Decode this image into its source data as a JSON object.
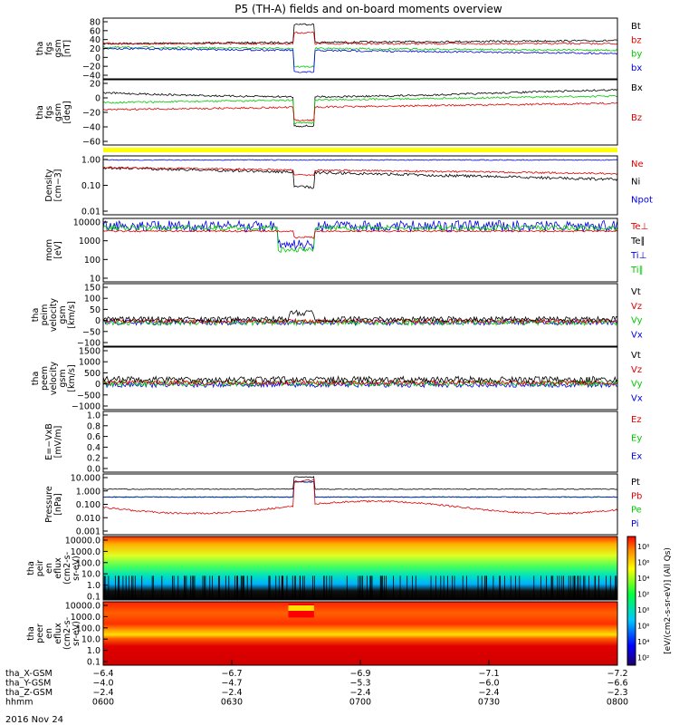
{
  "title": "P5 (TH-A) fields and on-board moments overview",
  "date_label": "2016 Nov 24",
  "colors": {
    "black": "#000000",
    "red": "#e00000",
    "green": "#00c800",
    "blue": "#0000e6",
    "yellow": "#ffff00"
  },
  "chart_data": [
    {
      "type": "line",
      "ylabel_lines": [
        "tha",
        "fgs",
        "gsm",
        "[nT]"
      ],
      "yticks": [
        "80",
        "60",
        "40",
        "20",
        "0",
        "−20",
        "−40"
      ],
      "legend": [
        {
          "name": "Bt",
          "color": "black"
        },
        {
          "name": "bz",
          "color": "red"
        },
        {
          "name": "by",
          "color": "green"
        },
        {
          "name": "bx",
          "color": "blue"
        }
      ]
    },
    {
      "type": "line",
      "ylabel_lines": [
        "tha",
        "fgs",
        "gsm",
        "[deg]"
      ],
      "yticks": [
        "20",
        "0",
        "−20",
        "−40",
        "−60"
      ],
      "legend": [
        {
          "name": "Bx",
          "color": "black"
        },
        {
          "name": "Bz",
          "color": "red"
        }
      ]
    },
    {
      "type": "line",
      "ylabel_lines": [
        "Density",
        "[cm−3]"
      ],
      "yticks": [
        "1.00",
        "0.10",
        "0.01"
      ],
      "legend": [
        {
          "name": "Ne",
          "color": "red"
        },
        {
          "name": "Ni",
          "color": "black"
        },
        {
          "name": "Npot",
          "color": "blue"
        }
      ]
    },
    {
      "type": "line",
      "ylabel_lines": [
        "mom",
        "[eV]"
      ],
      "yticks": [
        "10000",
        "1000",
        "100",
        "10"
      ],
      "legend": [
        {
          "name": "Te⊥",
          "color": "red"
        },
        {
          "name": "Te∥",
          "color": "black"
        },
        {
          "name": "Ti⊥",
          "color": "blue"
        },
        {
          "name": "Ti∥",
          "color": "green"
        }
      ]
    },
    {
      "type": "line",
      "ylabel_lines": [
        "tha",
        "peim",
        "velocity",
        "gsm",
        "[km/s]"
      ],
      "yticks": [
        "150",
        "100",
        "50",
        "0",
        "−50",
        "−100"
      ],
      "legend": [
        {
          "name": "Vt",
          "color": "black"
        },
        {
          "name": "Vz",
          "color": "red"
        },
        {
          "name": "Vy",
          "color": "green"
        },
        {
          "name": "Vx",
          "color": "blue"
        }
      ]
    },
    {
      "type": "line",
      "ylabel_lines": [
        "tha",
        "peem",
        "velocity",
        "gsm",
        "[km/s]"
      ],
      "yticks": [
        "1500",
        "1000",
        "500",
        "0",
        "−500",
        "−1000"
      ],
      "legend": [
        {
          "name": "Vt",
          "color": "black"
        },
        {
          "name": "Vz",
          "color": "red"
        },
        {
          "name": "Vy",
          "color": "green"
        },
        {
          "name": "Vx",
          "color": "blue"
        }
      ]
    },
    {
      "type": "line",
      "ylabel_lines": [
        "E=−VxB",
        "[mV/m]"
      ],
      "yticks": [
        "1.0",
        "0.8",
        "0.6",
        "0.4",
        "0.2",
        "0.0"
      ],
      "legend": [
        {
          "name": "Ez",
          "color": "red"
        },
        {
          "name": "Ey",
          "color": "green"
        },
        {
          "name": "Ex",
          "color": "blue"
        }
      ]
    },
    {
      "type": "line",
      "ylabel_lines": [
        "Pressure",
        "[nPa]"
      ],
      "yticks": [
        "10.000",
        "1.000",
        "0.100",
        "0.010",
        "0.001"
      ],
      "legend": [
        {
          "name": "Pt",
          "color": "black"
        },
        {
          "name": "Pb",
          "color": "red"
        },
        {
          "name": "Pe",
          "color": "green"
        },
        {
          "name": "Pi",
          "color": "blue"
        }
      ]
    },
    {
      "type": "heatmap",
      "ylabel_lines": [
        "tha",
        "peir",
        "en",
        "eflux",
        "(cm2-s-",
        "sr-eV)"
      ],
      "yticks": [
        "10000.0",
        "1000.0",
        "100.0",
        "10.0",
        "1.0",
        "0.1"
      ]
    },
    {
      "type": "heatmap",
      "ylabel_lines": [
        "tha",
        "peer",
        "en",
        "eflux",
        "(cm2-s-",
        "sr-eV)"
      ],
      "yticks": [
        "10000.0",
        "1000.0",
        "100.0",
        "10.0",
        "1.0",
        "0.1"
      ]
    }
  ],
  "colorbar": {
    "label": "[eV/(cm2-s-sr-eV)] (All Qs)",
    "ticks_top": [
      "10⁸",
      "10⁶",
      "10⁴",
      "10²"
    ],
    "ticks_bottom": [
      "10⁸",
      "10⁶",
      "10⁴",
      "10²"
    ]
  },
  "xaxis": {
    "rows": [
      {
        "label": "tha_X-GSM",
        "values": [
          "−6.4",
          "−6.7",
          "−6.9",
          "−7.1",
          "−7.2"
        ]
      },
      {
        "label": "tha_Y-GSM",
        "values": [
          "−4.0",
          "−4.7",
          "−5.3",
          "−6.0",
          "−6.6"
        ]
      },
      {
        "label": "tha_Z-GSM",
        "values": [
          "−2.4",
          "−2.4",
          "−2.4",
          "−2.4",
          "−2.3"
        ]
      },
      {
        "label": "hhmm",
        "values": [
          "0600",
          "0630",
          "0700",
          "0730",
          "0800"
        ]
      }
    ]
  }
}
